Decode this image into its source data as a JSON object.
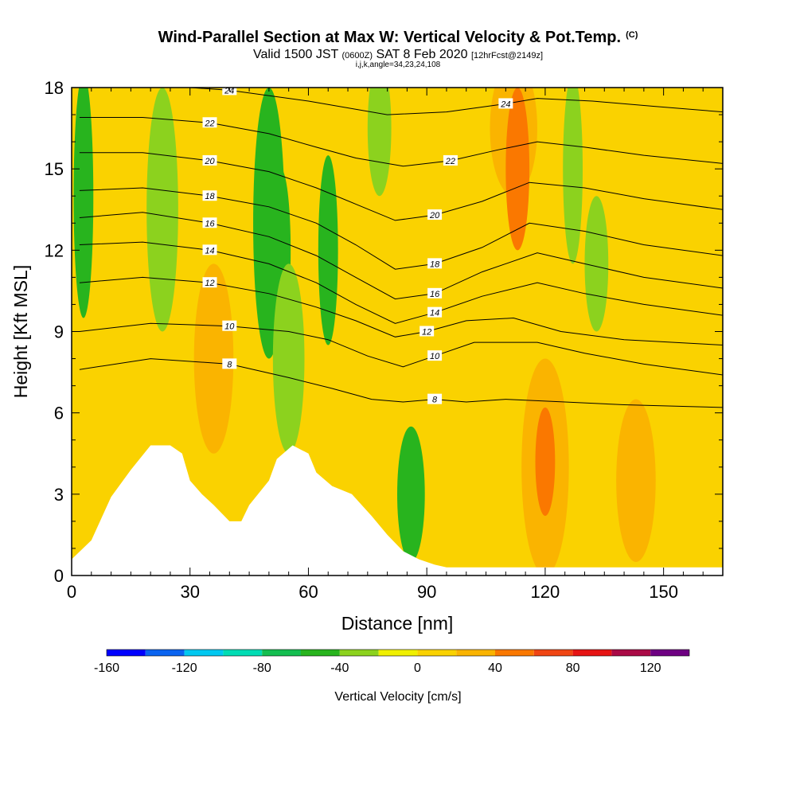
{
  "title": {
    "main": "Wind-Parallel Section at Max W: Vertical Velocity & Pot.Temp.",
    "copyright": "(C)",
    "valid_prefix": "Valid 1500 JST",
    "valid_utc": "(0600Z)",
    "valid_date": "SAT 8 Feb 2020",
    "forecast": "[12hrFcst@2149z]",
    "indices": "i,j,k,angle=34,23,24,108"
  },
  "chart_data": {
    "type": "heatmap",
    "xlabel": "Distance [nm]",
    "ylabel": "Height [Kft MSL]",
    "xlim": [
      0,
      165
    ],
    "ylim": [
      0,
      18
    ],
    "x_ticks": [
      0,
      30,
      60,
      90,
      120,
      150
    ],
    "y_ticks": [
      0,
      3,
      6,
      9,
      12,
      15,
      18
    ],
    "colorbar": {
      "label": "Vertical Velocity [cm/s]",
      "ticks": [
        -160,
        -120,
        -80,
        -40,
        0,
        40,
        80,
        120
      ],
      "levels": [
        -160,
        -140,
        -120,
        -100,
        -80,
        -60,
        -40,
        -20,
        0,
        20,
        40,
        60,
        80,
        100,
        120,
        140
      ],
      "colors": [
        "#0000ff",
        "#0a64f0",
        "#00c8f0",
        "#00dcb4",
        "#14be50",
        "#28b41e",
        "#8cd21e",
        "#f0f000",
        "#fad200",
        "#fab400",
        "#fa7800",
        "#f04614",
        "#e61414",
        "#aa0a46",
        "#6e0082"
      ]
    },
    "terrain": [
      [
        0,
        0.6
      ],
      [
        5,
        1.3
      ],
      [
        10,
        2.9
      ],
      [
        15,
        3.9
      ],
      [
        20,
        4.8
      ],
      [
        25,
        4.8
      ],
      [
        28,
        4.5
      ],
      [
        30,
        3.5
      ],
      [
        33,
        3.0
      ],
      [
        36,
        2.6
      ],
      [
        40,
        2.0
      ],
      [
        43,
        2.0
      ],
      [
        45,
        2.6
      ],
      [
        50,
        3.5
      ],
      [
        52,
        4.3
      ],
      [
        56,
        4.8
      ],
      [
        60,
        4.5
      ],
      [
        62,
        3.8
      ],
      [
        66,
        3.3
      ],
      [
        71,
        3.0
      ],
      [
        76,
        2.2
      ],
      [
        80,
        1.5
      ],
      [
        84,
        0.9
      ],
      [
        88,
        0.6
      ],
      [
        92,
        0.4
      ],
      [
        95,
        0.3
      ],
      [
        165,
        0.3
      ]
    ],
    "theta_contours": [
      {
        "label": "8",
        "points": [
          [
            2,
            7.6
          ],
          [
            20,
            8.0
          ],
          [
            40,
            7.8
          ],
          [
            55,
            7.3
          ],
          [
            66,
            6.9
          ],
          [
            76,
            6.5
          ],
          [
            84,
            6.4
          ],
          [
            92,
            6.5
          ],
          [
            100,
            6.4
          ],
          [
            110,
            6.5
          ],
          [
            125,
            6.4
          ],
          [
            140,
            6.3
          ],
          [
            165,
            6.2
          ]
        ]
      },
      {
        "label": "10",
        "points": [
          [
            2,
            9.0
          ],
          [
            20,
            9.3
          ],
          [
            40,
            9.2
          ],
          [
            55,
            9.0
          ],
          [
            65,
            8.7
          ],
          [
            75,
            8.1
          ],
          [
            84,
            7.7
          ],
          [
            92,
            8.1
          ],
          [
            102,
            8.6
          ],
          [
            118,
            8.6
          ],
          [
            130,
            8.2
          ],
          [
            145,
            7.8
          ],
          [
            165,
            7.4
          ]
        ]
      },
      {
        "label": "12",
        "points": [
          [
            2,
            10.8
          ],
          [
            18,
            11.0
          ],
          [
            35,
            10.8
          ],
          [
            50,
            10.4
          ],
          [
            62,
            9.9
          ],
          [
            72,
            9.4
          ],
          [
            82,
            8.8
          ],
          [
            90,
            9.0
          ],
          [
            100,
            9.4
          ],
          [
            112,
            9.5
          ],
          [
            124,
            9.0
          ],
          [
            140,
            8.7
          ],
          [
            165,
            8.5
          ]
        ]
      },
      {
        "label": "14",
        "points": [
          [
            2,
            12.2
          ],
          [
            18,
            12.3
          ],
          [
            35,
            12.0
          ],
          [
            50,
            11.5
          ],
          [
            62,
            10.8
          ],
          [
            72,
            10.0
          ],
          [
            82,
            9.3
          ],
          [
            92,
            9.7
          ],
          [
            104,
            10.3
          ],
          [
            118,
            10.8
          ],
          [
            130,
            10.4
          ],
          [
            145,
            10.0
          ],
          [
            165,
            9.6
          ]
        ]
      },
      {
        "label": "16",
        "points": [
          [
            2,
            13.2
          ],
          [
            18,
            13.4
          ],
          [
            35,
            13.0
          ],
          [
            50,
            12.5
          ],
          [
            62,
            11.8
          ],
          [
            72,
            11.0
          ],
          [
            82,
            10.2
          ],
          [
            92,
            10.4
          ],
          [
            104,
            11.2
          ],
          [
            118,
            11.9
          ],
          [
            130,
            11.5
          ],
          [
            145,
            11.0
          ],
          [
            165,
            10.6
          ]
        ]
      },
      {
        "label": "18",
        "points": [
          [
            2,
            14.2
          ],
          [
            18,
            14.3
          ],
          [
            35,
            14.0
          ],
          [
            50,
            13.6
          ],
          [
            62,
            13.0
          ],
          [
            72,
            12.2
          ],
          [
            82,
            11.3
          ],
          [
            92,
            11.5
          ],
          [
            104,
            12.1
          ],
          [
            116,
            13.0
          ],
          [
            130,
            12.7
          ],
          [
            145,
            12.2
          ],
          [
            165,
            11.8
          ]
        ]
      },
      {
        "label": "20",
        "points": [
          [
            2,
            15.6
          ],
          [
            18,
            15.6
          ],
          [
            35,
            15.3
          ],
          [
            50,
            14.9
          ],
          [
            62,
            14.3
          ],
          [
            72,
            13.7
          ],
          [
            82,
            13.1
          ],
          [
            92,
            13.3
          ],
          [
            104,
            13.8
          ],
          [
            116,
            14.5
          ],
          [
            130,
            14.3
          ],
          [
            145,
            13.9
          ],
          [
            165,
            13.5
          ]
        ]
      },
      {
        "label": "22",
        "points": [
          [
            2,
            16.9
          ],
          [
            18,
            16.9
          ],
          [
            35,
            16.7
          ],
          [
            50,
            16.3
          ],
          [
            62,
            15.8
          ],
          [
            72,
            15.4
          ],
          [
            84,
            15.1
          ],
          [
            96,
            15.3
          ],
          [
            108,
            15.7
          ],
          [
            118,
            16.0
          ],
          [
            130,
            15.8
          ],
          [
            145,
            15.5
          ],
          [
            165,
            15.2
          ]
        ]
      },
      {
        "label": "24",
        "points": [
          [
            2,
            18.2
          ],
          [
            20,
            18.1
          ],
          [
            40,
            17.9
          ],
          [
            60,
            17.5
          ],
          [
            80,
            17.0
          ],
          [
            95,
            17.1
          ],
          [
            110,
            17.4
          ],
          [
            118,
            17.6
          ],
          [
            132,
            17.5
          ],
          [
            148,
            17.3
          ],
          [
            165,
            17.1
          ]
        ]
      }
    ],
    "w_features": [
      {
        "value": -50,
        "cx": 3,
        "cy": 14.0,
        "rx": 2.5,
        "ry": 4.5
      },
      {
        "value": -40,
        "cx": 23,
        "cy": 13.5,
        "rx": 4,
        "ry": 4.5
      },
      {
        "value": -50,
        "cx": 50,
        "cy": 13.0,
        "rx": 4,
        "ry": 5
      },
      {
        "value": -60,
        "cx": 53,
        "cy": 12.0,
        "rx": 2.5,
        "ry": 3
      },
      {
        "value": -40,
        "cx": 55,
        "cy": 8.0,
        "rx": 4,
        "ry": 3.5
      },
      {
        "value": -50,
        "cx": 65,
        "cy": 12.0,
        "rx": 2.5,
        "ry": 3.5
      },
      {
        "value": -40,
        "cx": 78,
        "cy": 16.5,
        "rx": 3,
        "ry": 2.5
      },
      {
        "value": -50,
        "cx": 86,
        "cy": 3.0,
        "rx": 3.5,
        "ry": 2.5
      },
      {
        "value": -60,
        "cx": 86,
        "cy": 3.0,
        "rx": 1.5,
        "ry": 1
      },
      {
        "value": -40,
        "cx": 127,
        "cy": 15.0,
        "rx": 2.5,
        "ry": 3.5
      },
      {
        "value": -40,
        "cx": 133,
        "cy": 11.5,
        "rx": 3,
        "ry": 2.5
      },
      {
        "value": 30,
        "cx": 112,
        "cy": 16.5,
        "rx": 6,
        "ry": 2.5
      },
      {
        "value": 50,
        "cx": 113,
        "cy": 15.0,
        "rx": 3,
        "ry": 3
      },
      {
        "value": 30,
        "cx": 36,
        "cy": 8.0,
        "rx": 5,
        "ry": 3.5
      },
      {
        "value": 30,
        "cx": 120,
        "cy": 4.0,
        "rx": 6,
        "ry": 4
      },
      {
        "value": 50,
        "cx": 120,
        "cy": 4.2,
        "rx": 2.5,
        "ry": 2
      },
      {
        "value": 30,
        "cx": 143,
        "cy": 3.5,
        "rx": 5,
        "ry": 3
      }
    ]
  }
}
